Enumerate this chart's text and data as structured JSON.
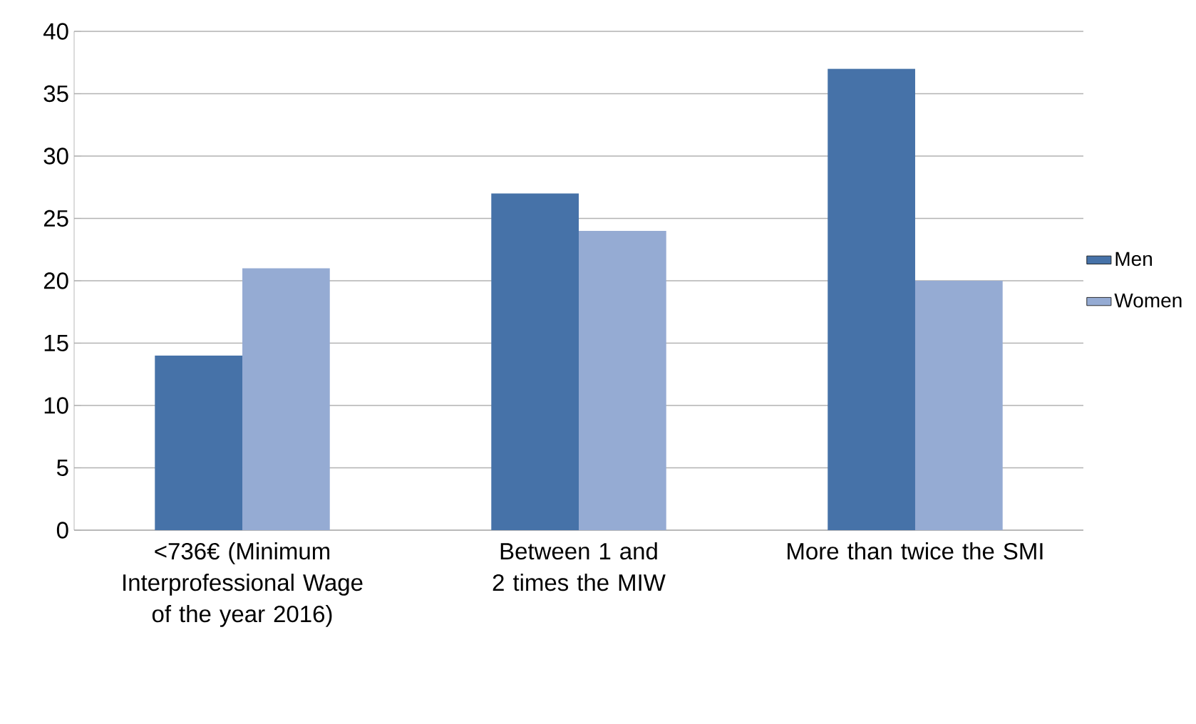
{
  "chart_data": {
    "type": "bar",
    "categories": [
      "<736€ (Minimum Interprofessional Wage of the year 2016)",
      "Between 1 and 2 times the MIW",
      "More than twice the SMI"
    ],
    "series": [
      {
        "name": "Men",
        "color": "#4672a8",
        "values": [
          14,
          27,
          37
        ]
      },
      {
        "name": "Women",
        "color": "#95abd3",
        "values": [
          21,
          24,
          20
        ]
      }
    ],
    "ylim": [
      0,
      40
    ],
    "yticks": [
      0,
      5,
      10,
      15,
      20,
      25,
      30,
      35,
      40
    ],
    "grid": "y",
    "legend": "right"
  }
}
